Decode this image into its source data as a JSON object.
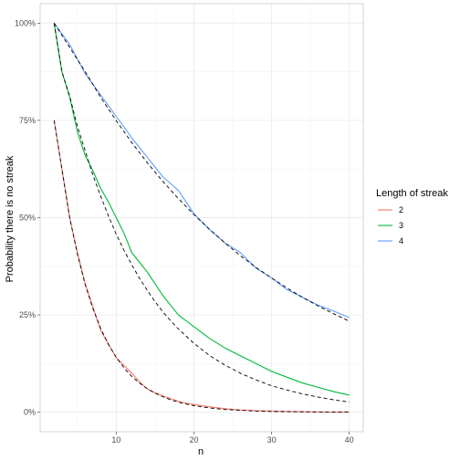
{
  "chart_data": {
    "type": "line",
    "title": "",
    "xlabel": "n",
    "ylabel": "Probability there is no streak",
    "xlim": [
      0.2,
      41.8
    ],
    "ylim": [
      -0.05,
      1.05
    ],
    "x_ticks": [
      10,
      20,
      30,
      40
    ],
    "x_tick_labels": [
      "10",
      "20",
      "30",
      "40"
    ],
    "y_ticks": [
      0,
      0.25,
      0.5,
      0.75,
      1.0
    ],
    "y_tick_labels": [
      "0%",
      "25%",
      "50%",
      "75%",
      "100%"
    ],
    "grid": true,
    "legend": {
      "title": "Length of streak",
      "placement": "right",
      "entries": [
        "2",
        "3",
        "4"
      ]
    },
    "reference_line_style": "dashed black",
    "series": [
      {
        "name": "2",
        "color": "#F8766D",
        "x": [
          2,
          3,
          4,
          5,
          6,
          7,
          8,
          9,
          10,
          11,
          12,
          13,
          14,
          15,
          16,
          17,
          18,
          19,
          20,
          22,
          24,
          26,
          28,
          30,
          32,
          34,
          36,
          38,
          40
        ],
        "values": [
          0.75,
          0.625,
          0.5,
          0.41,
          0.33,
          0.27,
          0.21,
          0.175,
          0.14,
          0.12,
          0.1,
          0.078,
          0.06,
          0.05,
          0.042,
          0.035,
          0.028,
          0.023,
          0.02,
          0.014,
          0.009,
          0.006,
          0.004,
          0.003,
          0.002,
          0.0015,
          0.001,
          0.0007,
          0.0005
        ]
      },
      {
        "name": "3",
        "color": "#00BA38",
        "x": [
          2,
          3,
          4,
          5,
          6,
          7,
          8,
          9,
          10,
          11,
          12,
          13,
          14,
          15,
          16,
          17,
          18,
          20,
          22,
          24,
          26,
          28,
          30,
          32,
          34,
          36,
          38,
          40
        ],
        "values": [
          1.0,
          0.875,
          0.81,
          0.72,
          0.66,
          0.62,
          0.575,
          0.54,
          0.5,
          0.46,
          0.41,
          0.385,
          0.36,
          0.33,
          0.3,
          0.275,
          0.25,
          0.22,
          0.19,
          0.165,
          0.145,
          0.125,
          0.105,
          0.09,
          0.075,
          0.064,
          0.053,
          0.044
        ]
      },
      {
        "name": "4",
        "color": "#619CFF",
        "x": [
          2,
          4,
          6,
          8,
          10,
          12,
          14,
          16,
          18,
          20,
          22,
          24,
          26,
          28,
          30,
          32,
          34,
          36,
          38,
          40
        ],
        "values": [
          1.0,
          0.945,
          0.87,
          0.815,
          0.76,
          0.705,
          0.655,
          0.605,
          0.57,
          0.51,
          0.47,
          0.435,
          0.41,
          0.37,
          0.345,
          0.315,
          0.295,
          0.275,
          0.26,
          0.243
        ]
      }
    ],
    "reference_curves": [
      {
        "x": [
          2,
          3,
          4,
          5,
          6,
          7,
          8,
          9,
          10,
          11,
          12,
          13,
          14,
          15,
          16,
          17,
          18,
          19,
          20,
          22,
          24,
          26,
          28,
          30,
          32,
          34,
          36,
          38,
          40
        ],
        "values": [
          0.75,
          0.625,
          0.5,
          0.406,
          0.328,
          0.266,
          0.215,
          0.174,
          0.141,
          0.114,
          0.092,
          0.075,
          0.06,
          0.049,
          0.04,
          0.032,
          0.026,
          0.021,
          0.017,
          0.011,
          0.007,
          0.005,
          0.003,
          0.002,
          0.0015,
          0.001,
          0.0006,
          0.0004,
          0.0003
        ]
      },
      {
        "x": [
          2,
          3,
          4,
          5,
          6,
          7,
          8,
          9,
          10,
          11,
          12,
          13,
          14,
          15,
          16,
          17,
          18,
          20,
          22,
          24,
          26,
          28,
          30,
          32,
          34,
          36,
          38,
          40
        ],
        "values": [
          1.0,
          0.875,
          0.8125,
          0.734,
          0.672,
          0.609,
          0.555,
          0.504,
          0.457,
          0.416,
          0.379,
          0.344,
          0.313,
          0.284,
          0.258,
          0.235,
          0.214,
          0.177,
          0.146,
          0.121,
          0.1,
          0.083,
          0.068,
          0.057,
          0.047,
          0.039,
          0.032,
          0.026
        ]
      },
      {
        "x": [
          2,
          4,
          6,
          8,
          10,
          12,
          14,
          16,
          18,
          20,
          22,
          24,
          26,
          28,
          30,
          32,
          34,
          36,
          38,
          40
        ],
        "values": [
          1.0,
          0.9375,
          0.875,
          0.809,
          0.749,
          0.693,
          0.641,
          0.593,
          0.549,
          0.508,
          0.47,
          0.435,
          0.402,
          0.372,
          0.345,
          0.319,
          0.295,
          0.273,
          0.253,
          0.234
        ]
      }
    ]
  }
}
